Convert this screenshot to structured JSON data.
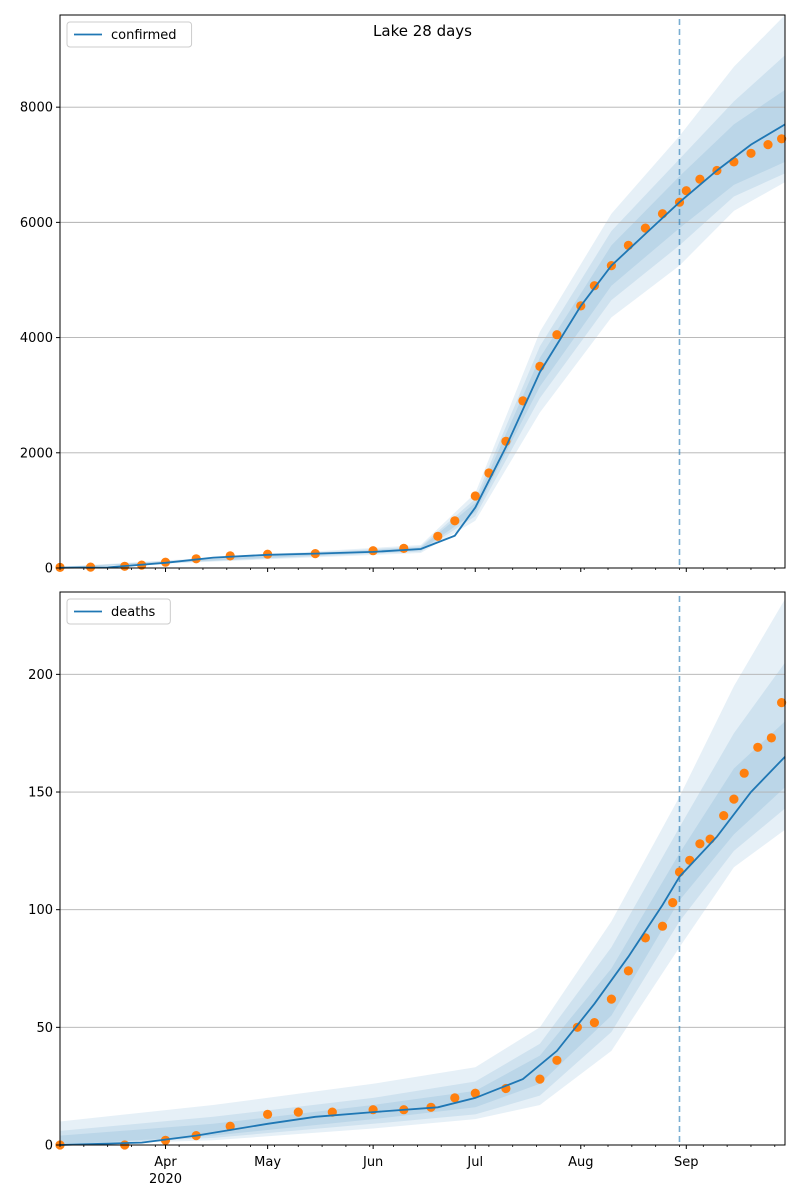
{
  "chart_data": [
    {
      "type": "line",
      "title": "Lake 28 days",
      "legend": [
        "confirmed"
      ],
      "legend_position": "top-left",
      "grid": true,
      "ylim": [
        0,
        9600
      ],
      "yticks": [
        0,
        2000,
        4000,
        6000,
        8000
      ],
      "ytick_labels": [
        "0",
        "2000",
        "4000",
        "6000",
        "8000"
      ],
      "xlim": [
        "2020-03-01",
        "2020-09-30"
      ],
      "forecast_start": "2020-08-30",
      "line_color": "#1f77b4",
      "point_color": "#ff7f0e",
      "band_color": "#1f77b4",
      "line": {
        "x": [
          "2020-03-01",
          "2020-03-15",
          "2020-04-01",
          "2020-04-15",
          "2020-05-01",
          "2020-05-15",
          "2020-06-01",
          "2020-06-15",
          "2020-06-25",
          "2020-07-01",
          "2020-07-10",
          "2020-07-20",
          "2020-08-01",
          "2020-08-10",
          "2020-08-20",
          "2020-08-30",
          "2020-09-10",
          "2020-09-20",
          "2020-09-30"
        ],
        "y": [
          5,
          10,
          90,
          180,
          230,
          250,
          280,
          330,
          560,
          1050,
          2100,
          3400,
          4550,
          5250,
          5800,
          6350,
          6900,
          7350,
          7700
        ]
      },
      "bands": [
        {
          "x": [
            "2020-03-01",
            "2020-06-15",
            "2020-07-01",
            "2020-07-20",
            "2020-08-10",
            "2020-08-30",
            "2020-09-15",
            "2020-09-30"
          ],
          "lo": [
            0,
            260,
            820,
            2700,
            4350,
            5250,
            6200,
            6700
          ],
          "hi": [
            20,
            400,
            1300,
            4100,
            6150,
            7500,
            8700,
            9600
          ]
        },
        {
          "x": [
            "2020-03-01",
            "2020-06-15",
            "2020-07-01",
            "2020-07-20",
            "2020-08-10",
            "2020-08-30",
            "2020-09-15",
            "2020-09-30"
          ],
          "lo": [
            0,
            285,
            900,
            2950,
            4650,
            5600,
            6450,
            6850
          ],
          "hi": [
            15,
            375,
            1200,
            3850,
            5850,
            7100,
            8100,
            8900
          ]
        },
        {
          "x": [
            "2020-03-01",
            "2020-06-15",
            "2020-07-01",
            "2020-07-20",
            "2020-08-10",
            "2020-08-30",
            "2020-09-15",
            "2020-09-30"
          ],
          "lo": [
            2,
            305,
            970,
            3150,
            4900,
            5900,
            6650,
            7050
          ],
          "hi": [
            12,
            355,
            1130,
            3650,
            5600,
            6800,
            7700,
            8300
          ]
        }
      ],
      "points": {
        "x": [
          "2020-03-01",
          "2020-03-10",
          "2020-03-20",
          "2020-03-25",
          "2020-04-01",
          "2020-04-10",
          "2020-04-20",
          "2020-05-01",
          "2020-05-15",
          "2020-06-01",
          "2020-06-10",
          "2020-06-20",
          "2020-06-25",
          "2020-07-01",
          "2020-07-05",
          "2020-07-10",
          "2020-07-15",
          "2020-07-20",
          "2020-07-25",
          "2020-08-01",
          "2020-08-05",
          "2020-08-10",
          "2020-08-15",
          "2020-08-20",
          "2020-08-25",
          "2020-08-30",
          "2020-09-01",
          "2020-09-05",
          "2020-09-10",
          "2020-09-15",
          "2020-09-20",
          "2020-09-25",
          "2020-09-29"
        ],
        "y": [
          10,
          15,
          30,
          50,
          100,
          160,
          210,
          240,
          250,
          300,
          340,
          550,
          820,
          1250,
          1650,
          2200,
          2900,
          3500,
          4050,
          4550,
          4900,
          5250,
          5600,
          5900,
          6150,
          6350,
          6550,
          6750,
          6900,
          7050,
          7200,
          7350,
          7450
        ]
      }
    },
    {
      "type": "line",
      "title": "",
      "legend": [
        "deaths"
      ],
      "legend_position": "top-left",
      "grid": true,
      "ylim": [
        0,
        235
      ],
      "yticks": [
        0,
        50,
        100,
        150,
        200
      ],
      "ytick_labels": [
        "0",
        "50",
        "100",
        "150",
        "200"
      ],
      "xlim": [
        "2020-03-01",
        "2020-09-30"
      ],
      "xticks": [
        "2020-04-01",
        "2020-05-01",
        "2020-06-01",
        "2020-07-01",
        "2020-08-01",
        "2020-09-01"
      ],
      "xtick_labels": [
        "Apr",
        "May",
        "Jun",
        "Jul",
        "Aug",
        "Sep"
      ],
      "xtick_year": "2020",
      "forecast_start": "2020-08-30",
      "line_color": "#1f77b4",
      "point_color": "#ff7f0e",
      "band_color": "#1f77b4",
      "line": {
        "x": [
          "2020-03-01",
          "2020-03-25",
          "2020-04-10",
          "2020-05-01",
          "2020-05-15",
          "2020-06-01",
          "2020-06-20",
          "2020-07-01",
          "2020-07-15",
          "2020-07-25",
          "2020-08-05",
          "2020-08-15",
          "2020-08-25",
          "2020-08-30",
          "2020-09-10",
          "2020-09-20",
          "2020-09-30"
        ],
        "y": [
          0,
          1,
          4,
          9,
          12,
          14,
          16,
          20,
          28,
          40,
          60,
          80,
          102,
          114,
          131,
          150,
          165
        ]
      },
      "bands": [
        {
          "x": [
            "2020-03-01",
            "2020-04-15",
            "2020-06-01",
            "2020-07-01",
            "2020-07-20",
            "2020-08-10",
            "2020-08-30",
            "2020-09-15",
            "2020-09-30"
          ],
          "lo": [
            0,
            2,
            7,
            11,
            17,
            40,
            84,
            118,
            134
          ],
          "hi": [
            10,
            17,
            26,
            33,
            50,
            95,
            148,
            195,
            232
          ]
        },
        {
          "x": [
            "2020-03-01",
            "2020-04-15",
            "2020-06-01",
            "2020-07-01",
            "2020-07-20",
            "2020-08-10",
            "2020-08-30",
            "2020-09-15",
            "2020-09-30"
          ],
          "lo": [
            0,
            3,
            9,
            13,
            21,
            48,
            95,
            125,
            143
          ],
          "hi": [
            6,
            12,
            20,
            27,
            43,
            84,
            135,
            175,
            205
          ]
        },
        {
          "x": [
            "2020-03-01",
            "2020-04-15",
            "2020-06-01",
            "2020-07-01",
            "2020-07-20",
            "2020-08-10",
            "2020-08-30",
            "2020-09-15",
            "2020-09-30"
          ],
          "lo": [
            0,
            4,
            11,
            16,
            26,
            55,
            104,
            132,
            152
          ],
          "hi": [
            4,
            9,
            17,
            23,
            38,
            75,
            124,
            160,
            180
          ]
        }
      ],
      "points": {
        "x": [
          "2020-03-01",
          "2020-03-20",
          "2020-04-01",
          "2020-04-10",
          "2020-04-20",
          "2020-05-01",
          "2020-05-10",
          "2020-05-20",
          "2020-06-01",
          "2020-06-10",
          "2020-06-18",
          "2020-06-25",
          "2020-07-01",
          "2020-07-10",
          "2020-07-20",
          "2020-07-25",
          "2020-07-31",
          "2020-08-05",
          "2020-08-10",
          "2020-08-15",
          "2020-08-20",
          "2020-08-25",
          "2020-08-28",
          "2020-08-30",
          "2020-09-02",
          "2020-09-05",
          "2020-09-08",
          "2020-09-12",
          "2020-09-15",
          "2020-09-18",
          "2020-09-22",
          "2020-09-26",
          "2020-09-29"
        ],
        "y": [
          0,
          0,
          2,
          4,
          8,
          13,
          14,
          14,
          15,
          15,
          16,
          20,
          22,
          24,
          28,
          36,
          50,
          52,
          62,
          74,
          88,
          93,
          103,
          116,
          121,
          128,
          130,
          140,
          147,
          158,
          169,
          173,
          188
        ]
      }
    }
  ]
}
